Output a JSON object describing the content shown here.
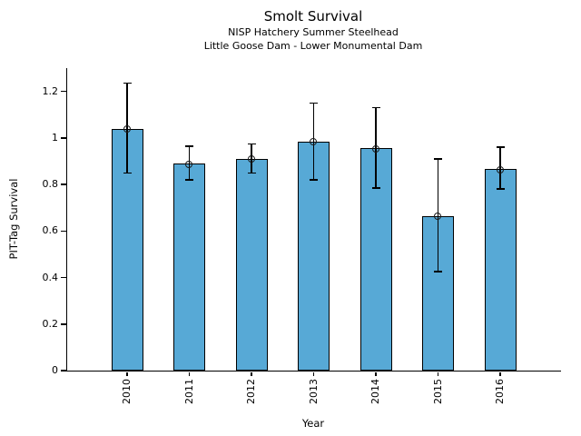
{
  "header": {
    "title": "Smolt Survival",
    "subtitle1": "NISP Hatchery Summer Steelhead",
    "subtitle2": "Little Goose Dam - Lower Monumental Dam"
  },
  "chart_data": {
    "type": "bar",
    "title": "Smolt Survival",
    "subtitle": "NISP Hatchery Summer Steelhead / Little Goose Dam - Lower Monumental Dam",
    "xlabel": "Year",
    "ylabel": "PIT-Tag Survival",
    "categories": [
      "2010",
      "2011",
      "2012",
      "2013",
      "2014",
      "2015",
      "2016"
    ],
    "values": [
      1.04,
      0.89,
      0.91,
      0.985,
      0.955,
      0.665,
      0.865
    ],
    "error_low": [
      0.85,
      0.82,
      0.85,
      0.82,
      0.785,
      0.425,
      0.78
    ],
    "error_high": [
      1.235,
      0.965,
      0.975,
      1.15,
      1.13,
      0.91,
      0.96
    ],
    "yticks": [
      0,
      0.2,
      0.4,
      0.6,
      0.8,
      1,
      1.2
    ],
    "ytick_labels": [
      "0",
      "0.2",
      "0.4",
      "0.6",
      "0.8",
      "1",
      "1.2"
    ],
    "ylim": [
      0,
      1.3
    ],
    "grid": false,
    "legend": "none",
    "marker": "open-circle",
    "bar_color": "#57A9D6",
    "bar_edge_color": "#000000",
    "error_color": "#000000"
  }
}
